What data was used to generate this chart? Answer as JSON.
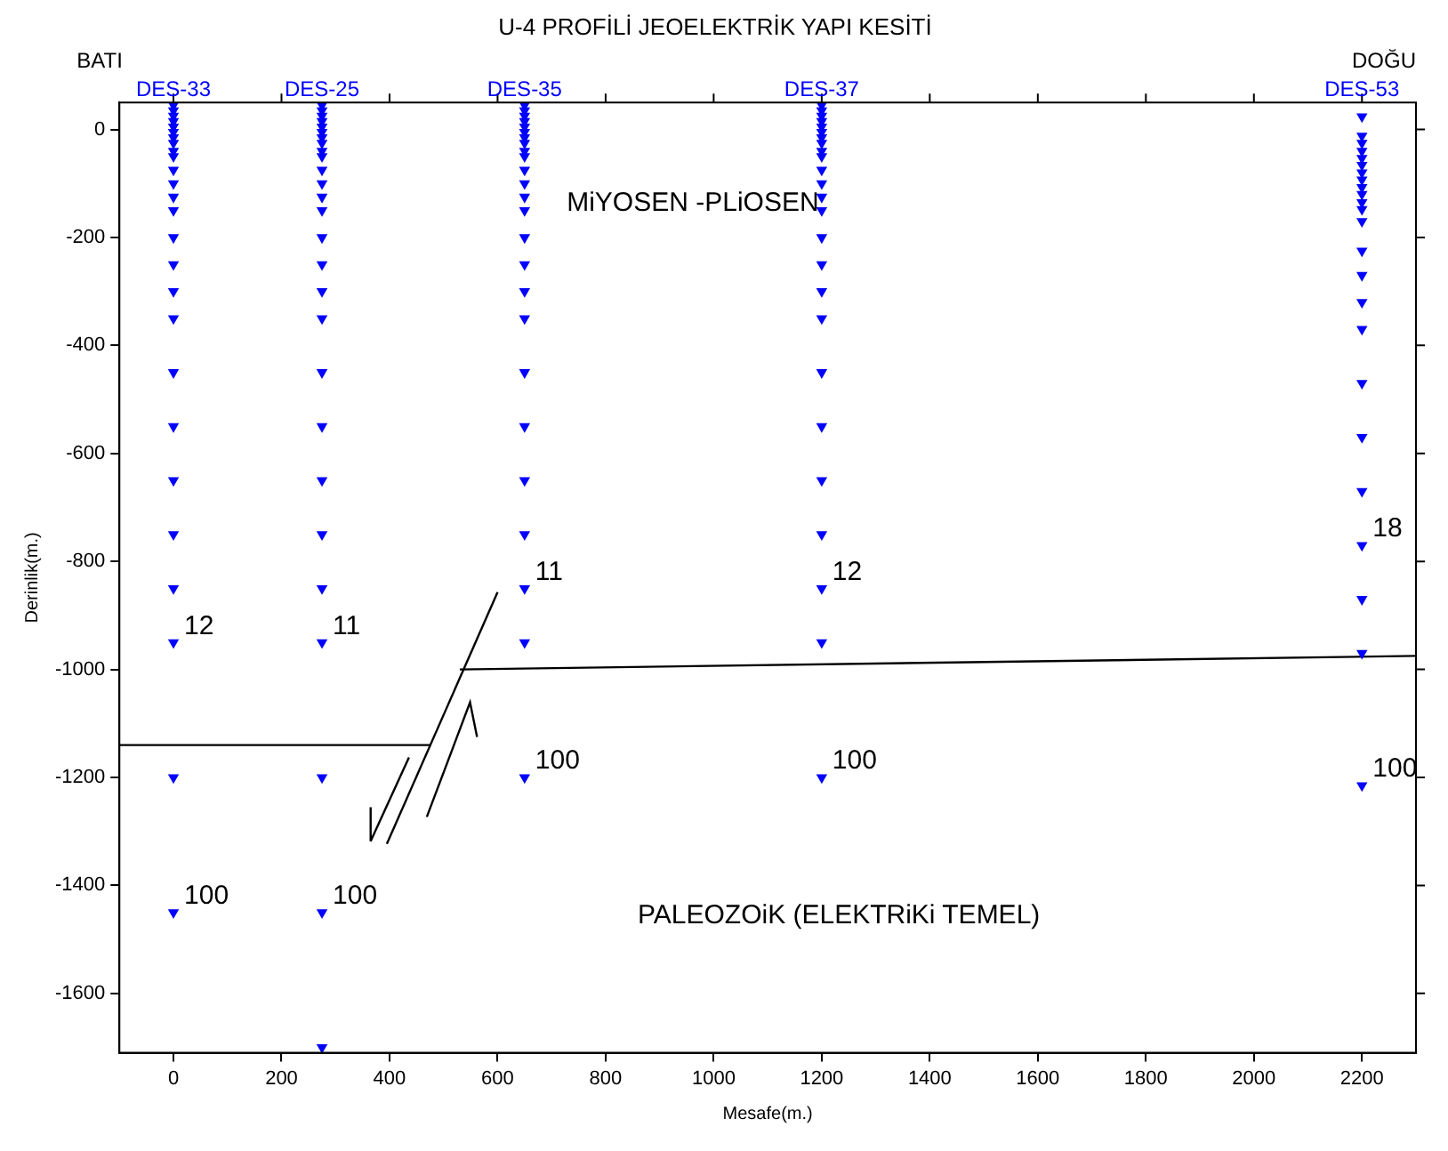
{
  "chart_data": {
    "type": "scatter",
    "title": "U-4 PROFİLİ JEOELEKTRİK YAPI KESİTİ",
    "xlabel": "Mesafe(m.)",
    "ylabel": "Derinlik(m.)",
    "xlim": [
      -100,
      2300
    ],
    "xticks": [
      0,
      200,
      400,
      600,
      800,
      1000,
      1200,
      1400,
      1600,
      1800,
      2000,
      2200
    ],
    "ylim": [
      -1710,
      50
    ],
    "yticks": [
      0,
      -200,
      -400,
      -600,
      -800,
      -1000,
      -1200,
      -1400,
      -1600
    ],
    "grid": false,
    "legend": false,
    "marker": "triangle",
    "series": [
      {
        "name": "DES-33",
        "color": "#0000ff",
        "x": [
          0,
          0,
          0,
          0,
          0,
          0,
          0,
          0,
          0,
          0,
          0,
          0,
          0,
          0,
          0,
          0,
          0,
          0,
          0,
          0,
          0,
          0,
          0,
          0,
          0,
          0
        ],
        "values": [
          45,
          35,
          25,
          15,
          5,
          -5,
          -15,
          -25,
          -40,
          -50,
          -75,
          -100,
          -125,
          -150,
          -200,
          -250,
          -300,
          -350,
          -450,
          -550,
          -650,
          -750,
          -850,
          -950,
          -1200,
          -1450
        ]
      },
      {
        "name": "DES-25",
        "color": "#0000ff",
        "x": [
          275,
          275,
          275,
          275,
          275,
          275,
          275,
          275,
          275,
          275,
          275,
          275,
          275,
          275,
          275,
          275,
          275,
          275,
          275,
          275,
          275,
          275,
          275,
          275,
          275,
          275,
          275
        ],
        "values": [
          45,
          35,
          25,
          15,
          5,
          -5,
          -15,
          -25,
          -40,
          -50,
          -75,
          -100,
          -125,
          -150,
          -200,
          -250,
          -300,
          -350,
          -450,
          -550,
          -650,
          -750,
          -850,
          -950,
          -1200,
          -1450,
          -1700
        ]
      },
      {
        "name": "DES-35",
        "color": "#0000ff",
        "x": [
          650,
          650,
          650,
          650,
          650,
          650,
          650,
          650,
          650,
          650,
          650,
          650,
          650,
          650,
          650,
          650,
          650,
          650,
          650,
          650,
          650,
          650,
          650,
          650,
          650
        ],
        "values": [
          45,
          35,
          25,
          15,
          5,
          -5,
          -15,
          -25,
          -40,
          -50,
          -75,
          -100,
          -125,
          -150,
          -200,
          -250,
          -300,
          -350,
          -450,
          -550,
          -650,
          -750,
          -850,
          -950,
          -1200
        ]
      },
      {
        "name": "DES-37",
        "color": "#0000ff",
        "x": [
          1200,
          1200,
          1200,
          1200,
          1200,
          1200,
          1200,
          1200,
          1200,
          1200,
          1200,
          1200,
          1200,
          1200,
          1200,
          1200,
          1200,
          1200,
          1200,
          1200,
          1200,
          1200,
          1200,
          1200,
          1200
        ],
        "values": [
          45,
          35,
          25,
          15,
          5,
          -5,
          -15,
          -25,
          -40,
          -50,
          -75,
          -100,
          -125,
          -150,
          -200,
          -250,
          -300,
          -350,
          -450,
          -550,
          -650,
          -750,
          -850,
          -950,
          -1200
        ]
      },
      {
        "name": "DES-53",
        "color": "#0000ff",
        "x": [
          2200,
          2200,
          2200,
          2200,
          2200,
          2200,
          2200,
          2200,
          2200,
          2200,
          2200,
          2200,
          2200,
          2200,
          2200,
          2200,
          2200,
          2200,
          2200,
          2200,
          2200,
          2200,
          2200,
          2200
        ],
        "values": [
          24,
          -12,
          -25,
          -40,
          -53,
          -66,
          -80,
          -93,
          -107,
          -120,
          -135,
          -148,
          -170,
          -225,
          -270,
          -320,
          -370,
          -470,
          -570,
          -670,
          -770,
          -870,
          -970,
          -1215
        ]
      },
      {
        "type": "line",
        "marker": "none",
        "color": "#000000",
        "x": [
          -100,
          475
        ],
        "values": [
          -1140,
          -1140
        ]
      },
      {
        "type": "line",
        "marker": "none",
        "color": "#000000",
        "x": [
          530,
          2300
        ],
        "values": [
          -1000,
          -975
        ]
      },
      {
        "type": "line",
        "marker": "none",
        "color": "#000000",
        "x": [
          395,
          600
        ],
        "values": [
          -1323,
          -857
        ]
      }
    ],
    "annotations": [
      "BATI",
      "DOĞU",
      {
        "text": "12",
        "x": 0,
        "y": -950
      },
      {
        "text": "11",
        "x": 275,
        "y": -950
      },
      {
        "text": "11",
        "x": 650,
        "y": -850
      },
      {
        "text": "12",
        "x": 1200,
        "y": -850
      },
      {
        "text": "18",
        "x": 2200,
        "y": -770
      },
      {
        "text": "100",
        "x": 0,
        "y": -1450
      },
      {
        "text": "100",
        "x": 275,
        "y": -1450
      },
      {
        "text": "100",
        "x": 650,
        "y": -1200
      },
      {
        "text": "100",
        "x": 1200,
        "y": -1200
      },
      {
        "text": "100",
        "x": 2200,
        "y": -1215
      },
      "MiYOSEN -PLiOSEN",
      "PALEOZOiK (ELEKTRiKi TEMEL)"
    ]
  }
}
